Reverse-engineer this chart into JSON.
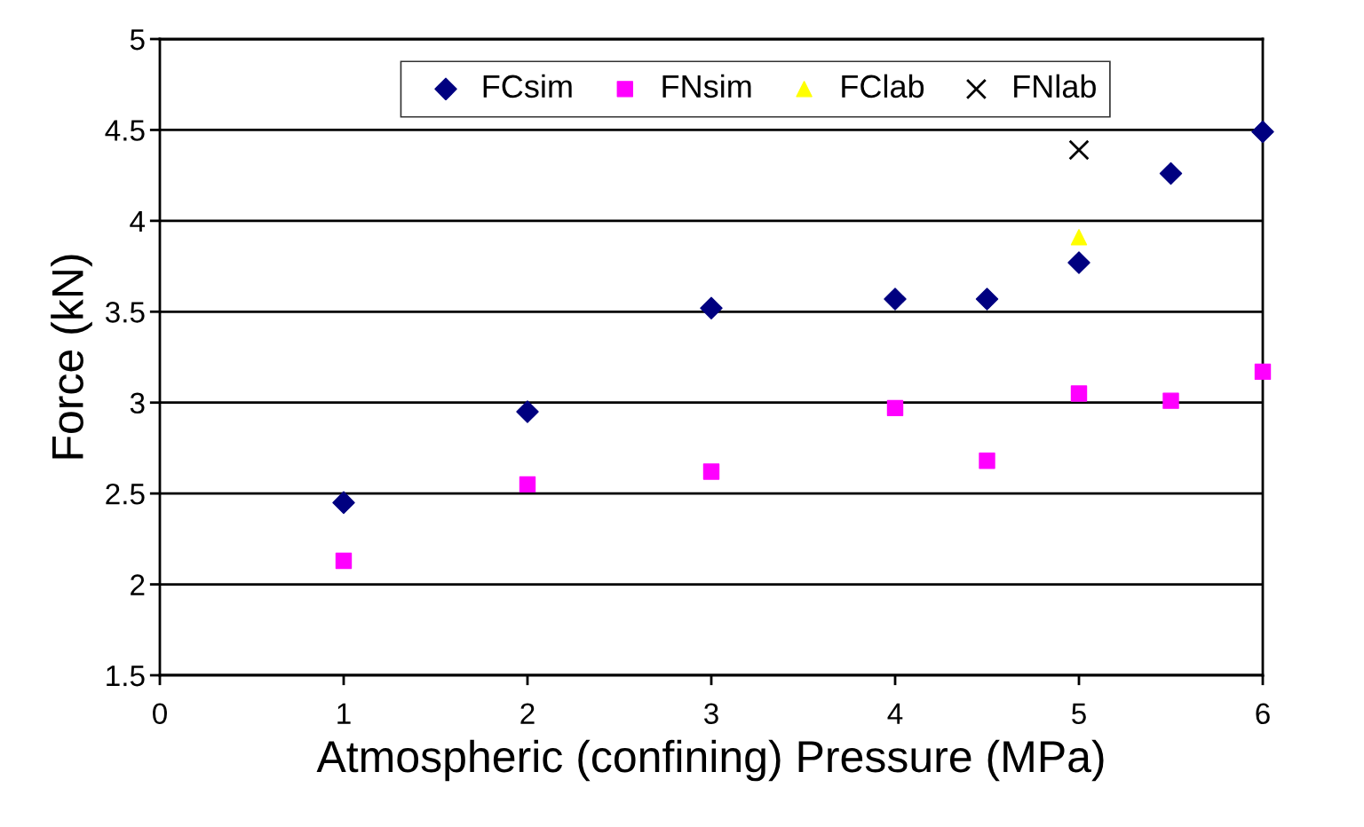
{
  "chart_data": {
    "type": "scatter",
    "xlabel": "Atmospheric (confining) Pressure (MPa)",
    "ylabel": "Force (kN)",
    "xlim": [
      0,
      6
    ],
    "xticks": [
      0,
      1,
      2,
      3,
      4,
      5,
      6
    ],
    "ylim": [
      1.5,
      5
    ],
    "yticks": [
      1.5,
      2,
      2.5,
      3,
      3.5,
      4,
      4.5,
      5
    ],
    "grid": "y",
    "legend": "top",
    "series": [
      {
        "name": "FCsim",
        "color": "#000080",
        "marker": "diamond",
        "x": [
          1,
          2,
          3,
          4,
          4.5,
          5,
          5.5,
          6
        ],
        "values": [
          2.45,
          2.95,
          3.52,
          3.57,
          3.57,
          3.77,
          4.26,
          4.49
        ]
      },
      {
        "name": "FNsim",
        "color": "#ff00ff",
        "marker": "square",
        "x": [
          1,
          2,
          3,
          4,
          4.5,
          5,
          5.5,
          6
        ],
        "values": [
          2.13,
          2.55,
          2.62,
          2.97,
          2.68,
          3.05,
          3.01,
          3.17
        ]
      },
      {
        "name": "FClab",
        "color": "#ffff00",
        "marker": "triangle",
        "x": [
          5
        ],
        "values": [
          3.91
        ]
      },
      {
        "name": "FNlab",
        "color": "#000000",
        "marker": "cross",
        "x": [
          5
        ],
        "values": [
          4.39
        ]
      }
    ]
  }
}
